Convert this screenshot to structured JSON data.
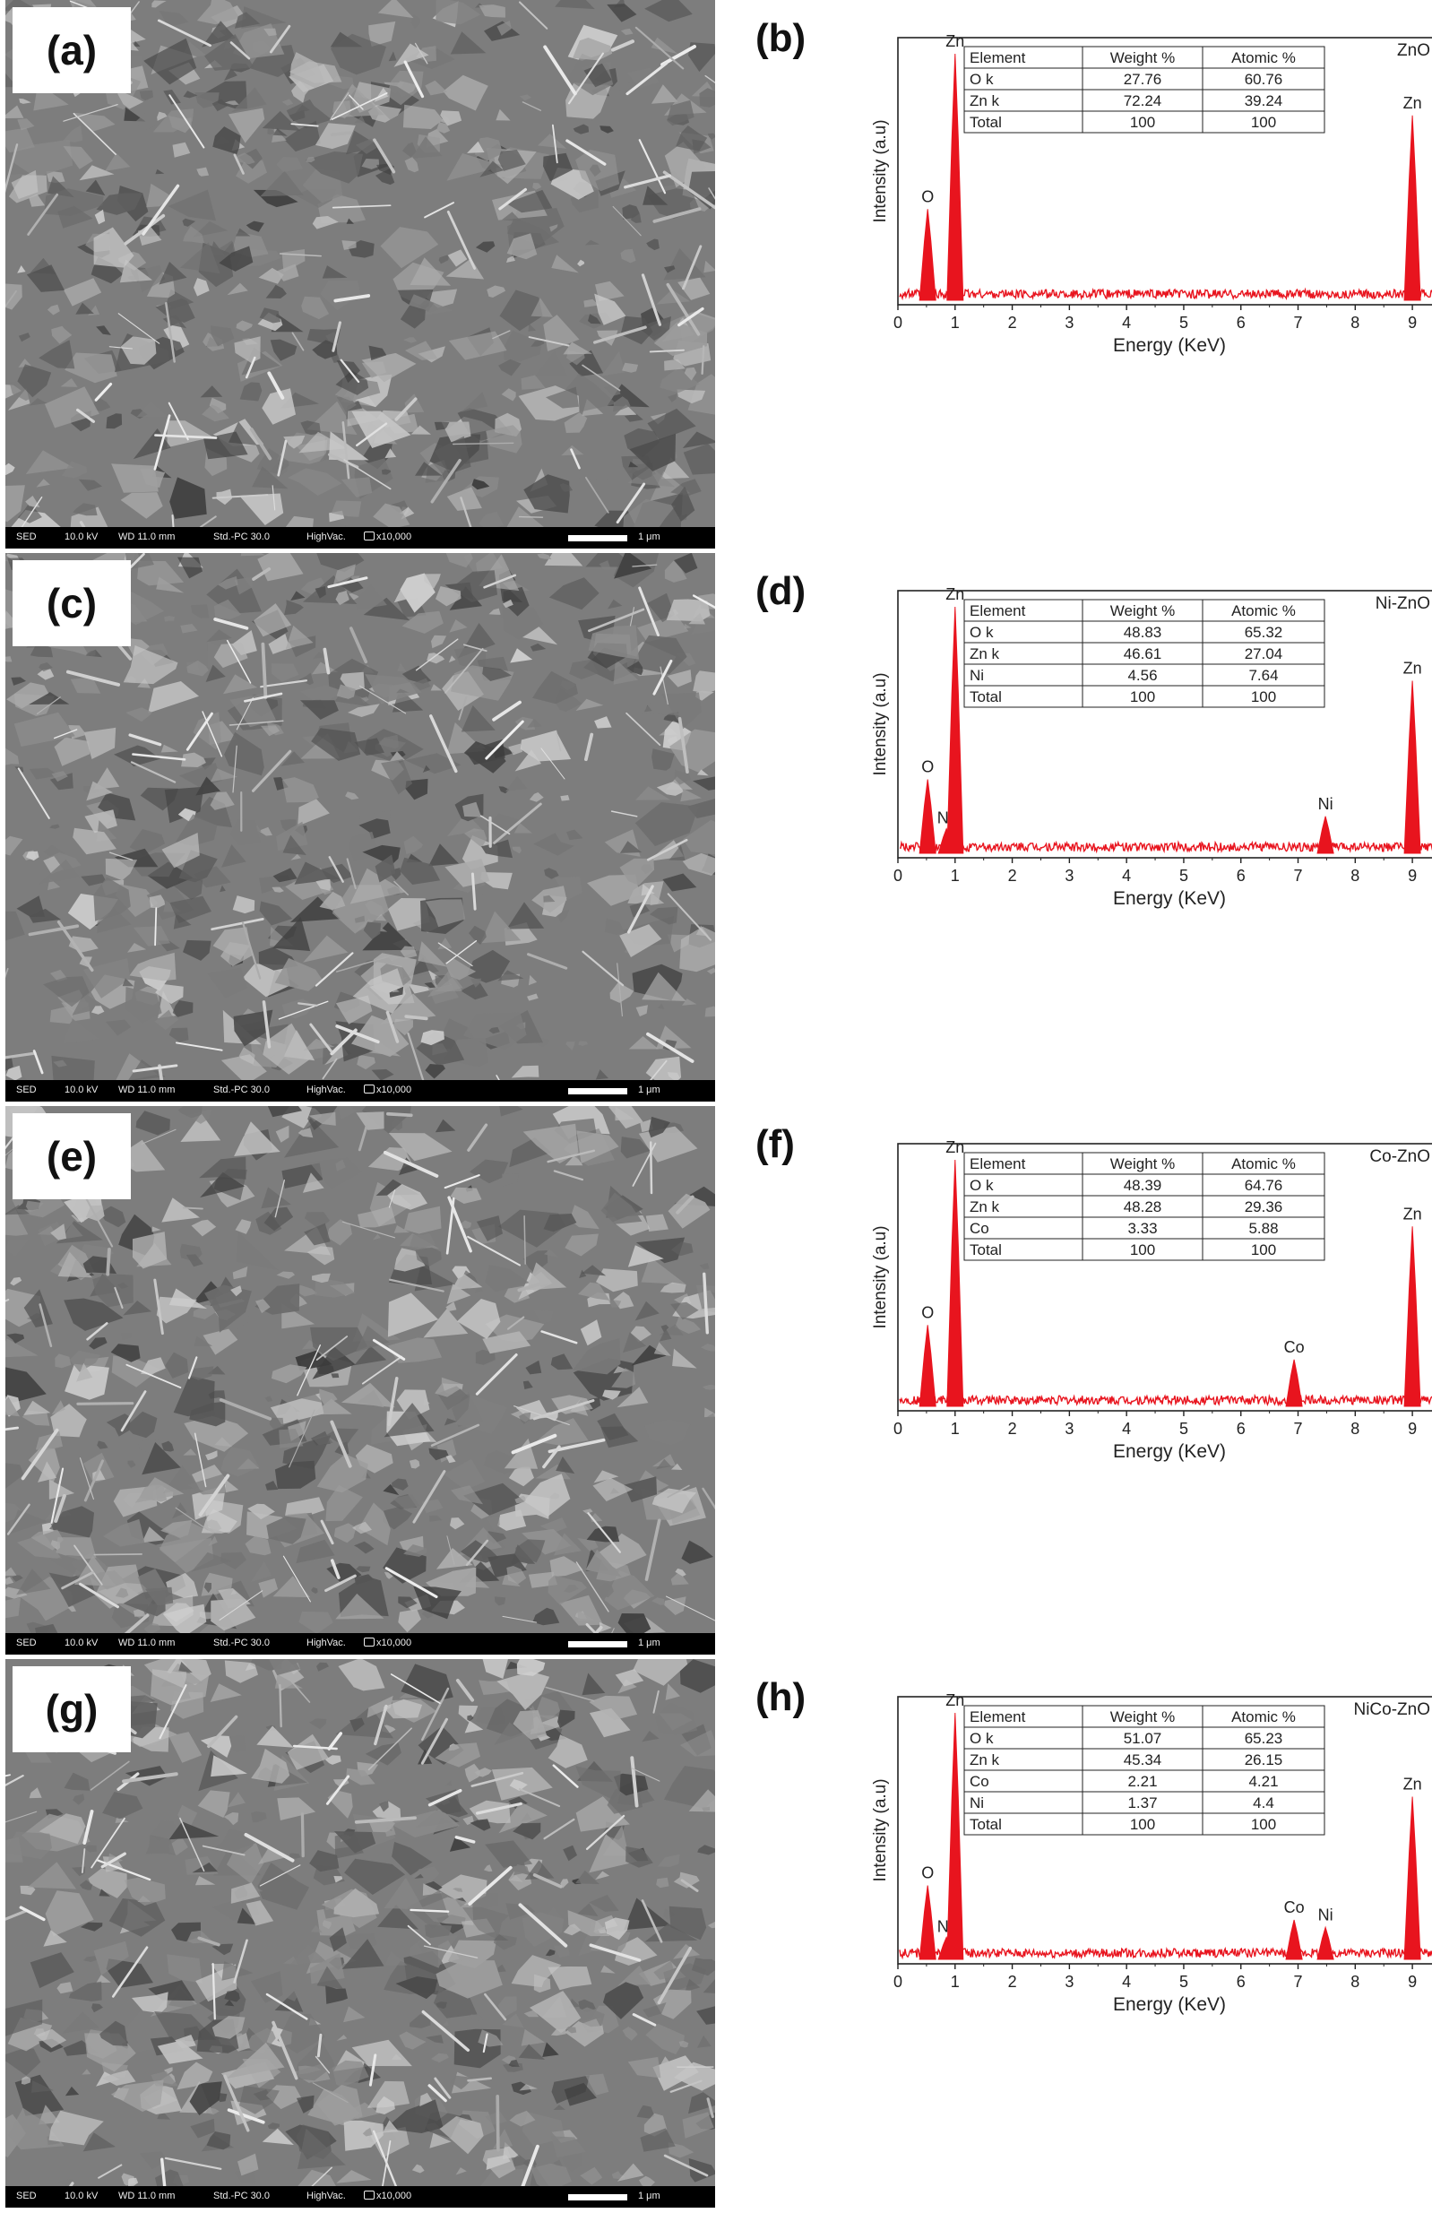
{
  "panels": [
    {
      "sem": {
        "label": "(a)",
        "bar": {
          "detector": "SED",
          "kv": "10.0 kV",
          "wd": "WD 11.0 mm",
          "std": "Std.-PC 30.0",
          "vac": "HighVac.",
          "mag": "x10,000",
          "scale": "1 μm"
        }
      },
      "eds": {
        "label": "(b)",
        "chart_data": {
          "type": "line",
          "sample": "ZnO",
          "xlabel": "Energy (KeV)",
          "ylabel": "Intensity (a.u)",
          "xlim": [
            0,
            9.5
          ],
          "xticks": [
            "0",
            "1",
            "2",
            "3",
            "4",
            "5",
            "6",
            "7",
            "8",
            "9"
          ],
          "peaks": [
            {
              "label": "O",
              "x": 0.52,
              "height": 0.37
            },
            {
              "label": "Zn",
              "x": 1.0,
              "height": 1.0
            },
            {
              "label": "Zn",
              "x": 9.0,
              "height": 0.75
            }
          ],
          "table": {
            "headers": [
              "Element",
              "Weight %",
              "Atomic %"
            ],
            "rows": [
              [
                "O k",
                "27.76",
                "60.76"
              ],
              [
                "Zn k",
                "72.24",
                "39.24"
              ],
              [
                "Total",
                "100",
                "100"
              ]
            ]
          }
        }
      }
    },
    {
      "sem": {
        "label": "(c)",
        "bar": {
          "detector": "SED",
          "kv": "10.0 kV",
          "wd": "WD 11.0 mm",
          "std": "Std.-PC 30.0",
          "vac": "HighVac.",
          "mag": "x10,000",
          "scale": "1 μm"
        }
      },
      "eds": {
        "label": "(d)",
        "chart_data": {
          "type": "line",
          "sample": "Ni-ZnO",
          "xlabel": "Energy (KeV)",
          "ylabel": "Intensity (a.u)",
          "xlim": [
            0,
            9.5
          ],
          "xticks": [
            "0",
            "1",
            "2",
            "3",
            "4",
            "5",
            "6",
            "7",
            "8",
            "9"
          ],
          "peaks": [
            {
              "label": "O",
              "x": 0.52,
              "height": 0.3
            },
            {
              "label": "Ni",
              "x": 0.85,
              "height": 0.1
            },
            {
              "label": "Zn",
              "x": 1.0,
              "height": 1.0
            },
            {
              "label": "Ni",
              "x": 7.48,
              "height": 0.15
            },
            {
              "label": "Zn",
              "x": 9.0,
              "height": 0.7
            }
          ],
          "table": {
            "headers": [
              "Element",
              "Weight %",
              "Atomic %"
            ],
            "rows": [
              [
                "O k",
                "48.83",
                "65.32"
              ],
              [
                "Zn k",
                "46.61",
                "27.04"
              ],
              [
                "Ni",
                "4.56",
                "7.64"
              ],
              [
                "Total",
                "100",
                "100"
              ]
            ]
          }
        }
      }
    },
    {
      "sem": {
        "label": "(e)",
        "bar": {
          "detector": "SED",
          "kv": "10.0 kV",
          "wd": "WD 11.0 mm",
          "std": "Std.-PC 30.0",
          "vac": "HighVac.",
          "mag": "x10,000",
          "scale": "1 μm"
        }
      },
      "eds": {
        "label": "(f)",
        "chart_data": {
          "type": "line",
          "sample": "Co-ZnO",
          "xlabel": "Energy (KeV)",
          "ylabel": "Intensity (a.u)",
          "xlim": [
            0,
            9.5
          ],
          "xticks": [
            "0",
            "1",
            "2",
            "3",
            "4",
            "5",
            "6",
            "7",
            "8",
            "9"
          ],
          "peaks": [
            {
              "label": "O",
              "x": 0.52,
              "height": 0.33
            },
            {
              "label": "Zn",
              "x": 1.0,
              "height": 1.0
            },
            {
              "label": "Co",
              "x": 6.93,
              "height": 0.19
            },
            {
              "label": "Zn",
              "x": 9.0,
              "height": 0.73
            }
          ],
          "table": {
            "headers": [
              "Element",
              "Weight %",
              "Atomic %"
            ],
            "rows": [
              [
                "O k",
                "48.39",
                "64.76"
              ],
              [
                "Zn k",
                "48.28",
                "29.36"
              ],
              [
                "Co",
                "3.33",
                "5.88"
              ],
              [
                "Total",
                "100",
                "100"
              ]
            ]
          }
        }
      }
    },
    {
      "sem": {
        "label": "(g)",
        "bar": {
          "detector": "SED",
          "kv": "10.0 kV",
          "wd": "WD 11.0 mm",
          "std": "Std.-PC 30.0",
          "vac": "HighVac.",
          "mag": "x10,000",
          "scale": "1 μm"
        }
      },
      "eds": {
        "label": "(h)",
        "chart_data": {
          "type": "line",
          "sample": "NiCo-ZnO",
          "xlabel": "Energy (KeV)",
          "ylabel": "Intensity (a.u)",
          "xlim": [
            0,
            9.5
          ],
          "xticks": [
            "0",
            "1",
            "2",
            "3",
            "4",
            "5",
            "6",
            "7",
            "8",
            "9"
          ],
          "peaks": [
            {
              "label": "O",
              "x": 0.52,
              "height": 0.3
            },
            {
              "label": "Ni",
              "x": 0.85,
              "height": 0.09
            },
            {
              "label": "Zn",
              "x": 1.0,
              "height": 1.0
            },
            {
              "label": "Co",
              "x": 6.93,
              "height": 0.16
            },
            {
              "label": "Ni",
              "x": 7.48,
              "height": 0.13
            },
            {
              "label": "Zn",
              "x": 9.0,
              "height": 0.66
            }
          ],
          "table": {
            "headers": [
              "Element",
              "Weight %",
              "Atomic %"
            ],
            "rows": [
              [
                "O k",
                "51.07",
                "65.23"
              ],
              [
                "Zn k",
                "45.34",
                "26.15"
              ],
              [
                "Co",
                "2.21",
                "4.21"
              ],
              [
                "Ni",
                "1.37",
                "4.4"
              ],
              [
                "Total",
                "100",
                "100"
              ]
            ]
          }
        }
      }
    }
  ],
  "colors": {
    "spectrum": "#e8141e",
    "axis": "#222222",
    "background": "#ffffff"
  }
}
